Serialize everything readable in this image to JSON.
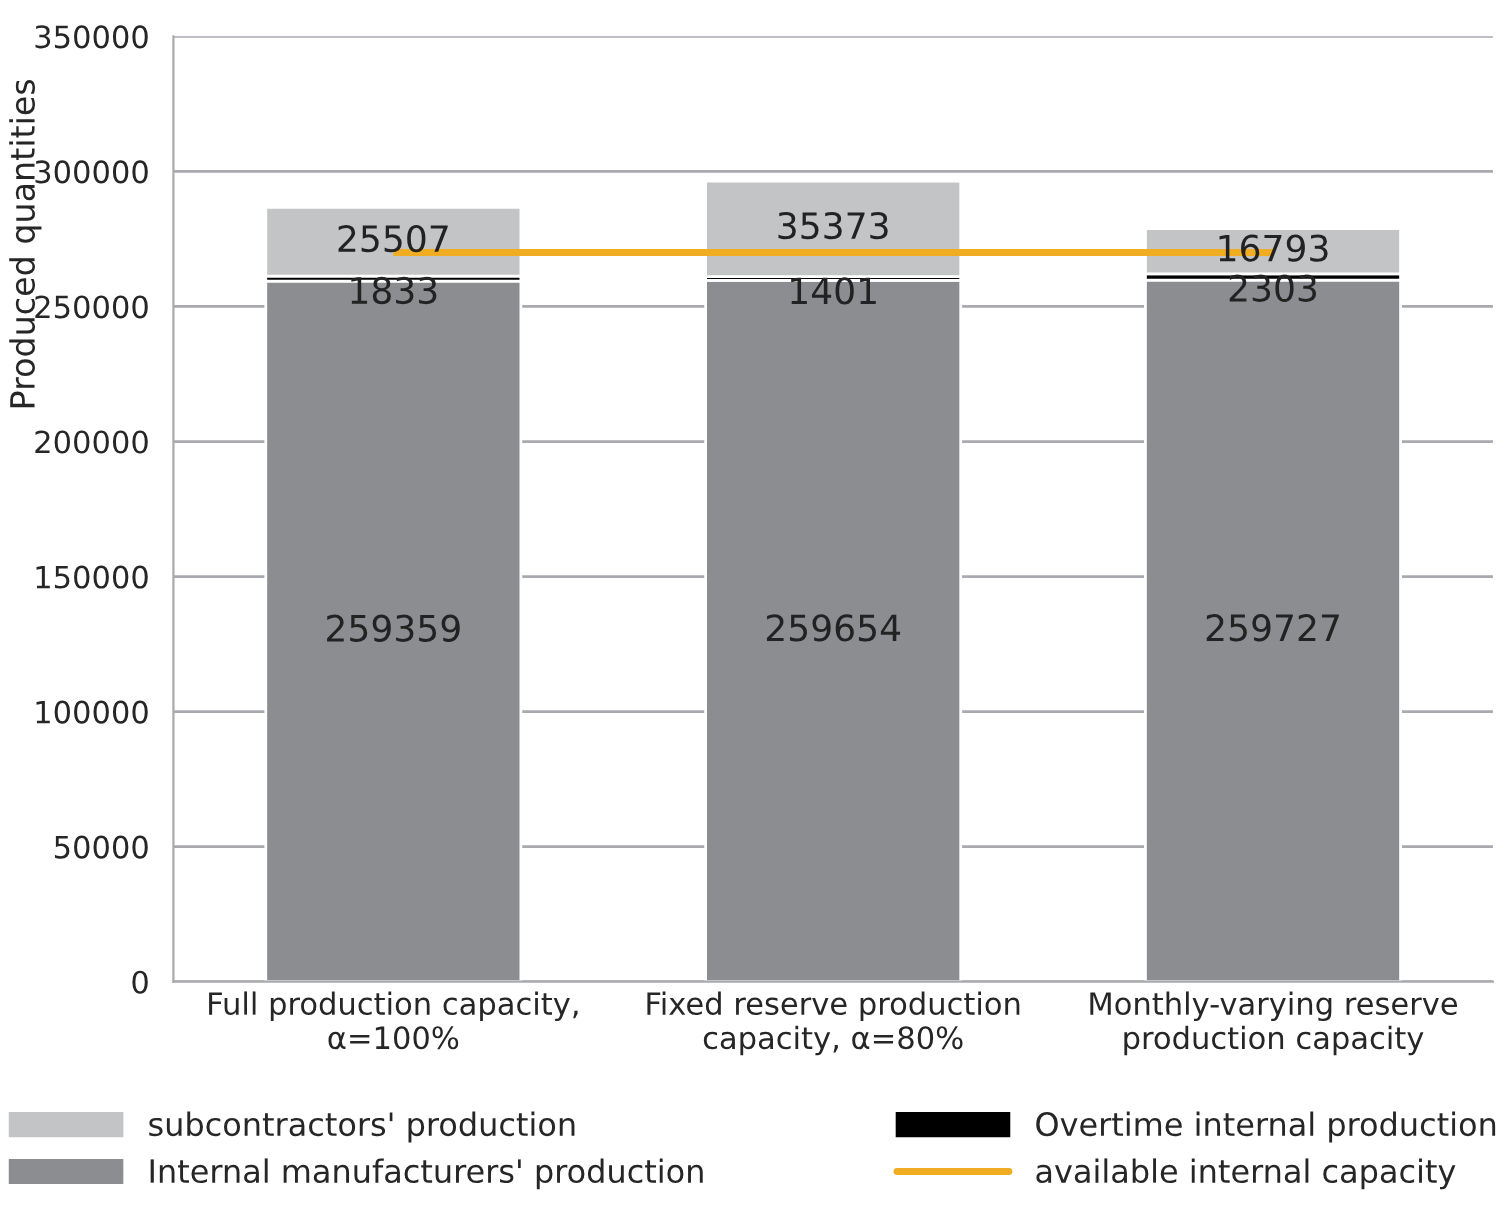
{
  "chart_data": {
    "type": "bar",
    "stacked": true,
    "ylabel": "Produced quantities",
    "categories": [
      "Full production capacity,\nα=100%",
      "Fixed reserve production\ncapacity, α=80%",
      "Monthly-varying reserve\nproduction capacity"
    ],
    "series": [
      {
        "name": "Internal manufacturers' production",
        "color": "#8c8d90",
        "values": [
          259359,
          259654,
          259727
        ],
        "value_labels": [
          "259359",
          "259654",
          "259727"
        ]
      },
      {
        "name": "Overtime internal production",
        "color": "#000000",
        "values": [
          1833,
          1401,
          2303
        ],
        "value_labels": [
          "1833",
          "1401",
          "2303"
        ]
      },
      {
        "name": "subcontractors' production",
        "color": "#c3c4c6",
        "values": [
          25507,
          35373,
          16793
        ],
        "value_labels": [
          "25507",
          "35373",
          "16793"
        ]
      },
      {
        "name": "available internal capacity",
        "type": "line",
        "color": "#f0ad22",
        "values": [
          270000,
          270000,
          270000
        ]
      }
    ],
    "ylim": [
      0,
      350000
    ],
    "yticks": [
      0,
      50000,
      100000,
      150000,
      200000,
      250000,
      300000,
      350000
    ],
    "grid": "y",
    "legend": "bottom"
  }
}
